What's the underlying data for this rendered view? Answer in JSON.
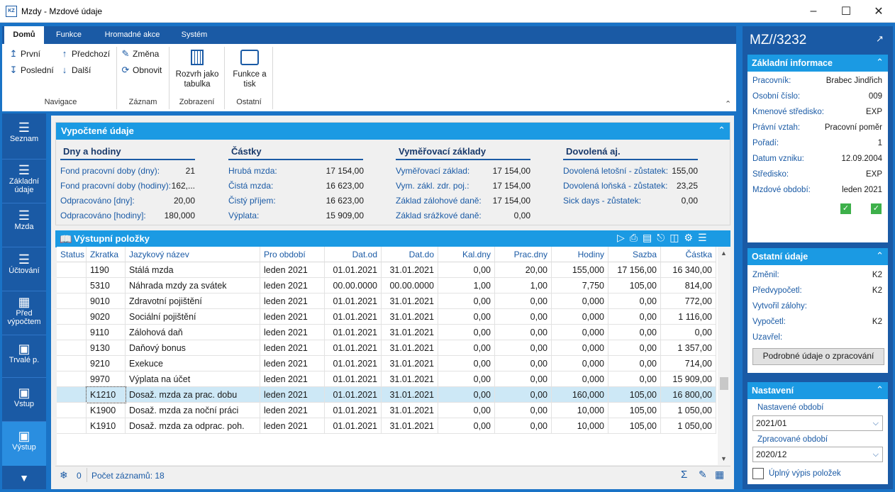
{
  "window": {
    "title": "Mzdy - Mzdové údaje",
    "icon_text": "KZ"
  },
  "ribbon": {
    "tabs": [
      "Domů",
      "Funkce",
      "Hromadné akce",
      "Systém"
    ],
    "nav": {
      "first": "První",
      "prev": "Předchozí",
      "last": "Poslední",
      "next": "Další",
      "group": "Navigace"
    },
    "record": {
      "change": "Změna",
      "refresh": "Obnovit",
      "group": "Záznam"
    },
    "view": {
      "layout": "Rozvrh jako tabulka",
      "group": "Zobrazení"
    },
    "other": {
      "print": "Funkce a tisk",
      "group": "Ostatní"
    }
  },
  "leftnav": [
    "Seznam",
    "Základní údaje",
    "Mzda",
    "Účtování",
    "Před výpočtem",
    "Trvalé p.",
    "Vstup",
    "Výstup"
  ],
  "computed": {
    "title": "Vypočtené údaje",
    "sections": [
      {
        "title": "Dny a hodiny",
        "rows": [
          [
            "Fond pracovní doby (dny):",
            "21"
          ],
          [
            "Fond pracovní doby (hodiny):",
            "162,..."
          ],
          [
            "Odpracováno [dny]:",
            "20,00"
          ],
          [
            "Odpracováno [hodiny]:",
            "180,000"
          ]
        ]
      },
      {
        "title": "Částky",
        "rows": [
          [
            "Hrubá mzda:",
            "17 154,00"
          ],
          [
            "Čistá mzda:",
            "16 623,00"
          ],
          [
            "Čistý příjem:",
            "16 623,00"
          ],
          [
            "Výplata:",
            "15 909,00"
          ]
        ]
      },
      {
        "title": "Vyměřovací základy",
        "rows": [
          [
            "Vyměřovací základ:",
            "17 154,00"
          ],
          [
            "Vym. zákl. zdr. poj.:",
            "17 154,00"
          ],
          [
            "Základ zálohové daně:",
            "17 154,00"
          ],
          [
            "Základ srážkové daně:",
            "0,00"
          ]
        ]
      },
      {
        "title": "Dovolená aj.",
        "rows": [
          [
            "Dovolená letošní - zůstatek:",
            "155,00"
          ],
          [
            "Dovolená loňská - zůstatek:",
            "23,25"
          ],
          [
            "Sick days - zůstatek:",
            "0,00"
          ]
        ]
      }
    ]
  },
  "output": {
    "title": "Výstupní položky",
    "columns": [
      "Status",
      "Zkratka",
      "Jazykový název",
      "Pro období",
      "Dat.od",
      "Dat.do",
      "Kal.dny",
      "Prac.dny",
      "Hodiny",
      "Sazba",
      "Částka"
    ],
    "rows": [
      [
        "",
        "1190",
        "Stálá mzda",
        "leden 2021",
        "01.01.2021",
        "31.01.2021",
        "0,00",
        "20,00",
        "155,000",
        "17 156,00",
        "16 340,00"
      ],
      [
        "",
        "5310",
        "Náhrada mzdy za svátek",
        "leden 2021",
        "00.00.0000",
        "00.00.0000",
        "1,00",
        "1,00",
        "7,750",
        "105,00",
        "814,00"
      ],
      [
        "",
        "9010",
        "Zdravotní pojištění",
        "leden 2021",
        "01.01.2021",
        "31.01.2021",
        "0,00",
        "0,00",
        "0,000",
        "0,00",
        "772,00"
      ],
      [
        "",
        "9020",
        "Sociální pojištění",
        "leden 2021",
        "01.01.2021",
        "31.01.2021",
        "0,00",
        "0,00",
        "0,000",
        "0,00",
        "1 116,00"
      ],
      [
        "",
        "9110",
        "Zálohová daň",
        "leden 2021",
        "01.01.2021",
        "31.01.2021",
        "0,00",
        "0,00",
        "0,000",
        "0,00",
        "0,00"
      ],
      [
        "",
        "9130",
        "Daňový bonus",
        "leden 2021",
        "01.01.2021",
        "31.01.2021",
        "0,00",
        "0,00",
        "0,000",
        "0,00",
        "1 357,00"
      ],
      [
        "",
        "9210",
        "Exekuce",
        "leden 2021",
        "01.01.2021",
        "31.01.2021",
        "0,00",
        "0,00",
        "0,000",
        "0,00",
        "714,00"
      ],
      [
        "",
        "9970",
        "Výplata na účet",
        "leden 2021",
        "01.01.2021",
        "31.01.2021",
        "0,00",
        "0,00",
        "0,000",
        "0,00",
        "15 909,00"
      ],
      [
        "",
        "K1210",
        "Dosaž. mzda za prac. dobu",
        "leden 2021",
        "01.01.2021",
        "31.01.2021",
        "0,00",
        "0,00",
        "160,000",
        "105,00",
        "16 800,00"
      ],
      [
        "",
        "K1900",
        "Dosaž. mzda za noční práci",
        "leden 2021",
        "01.01.2021",
        "31.01.2021",
        "0,00",
        "0,00",
        "10,000",
        "105,00",
        "1 050,00"
      ],
      [
        "",
        "K1910",
        "Dosaž. mzda za odprac. poh.",
        "leden 2021",
        "01.01.2021",
        "31.01.2021",
        "0,00",
        "0,00",
        "10,000",
        "105,00",
        "1 050,00"
      ]
    ],
    "selected_row": 8,
    "footer": {
      "filter_count": "0",
      "count": "Počet záznamů: 18"
    }
  },
  "right": {
    "record_id": "MZ//3232",
    "basic": {
      "title": "Základní informace",
      "rows": [
        [
          "Pracovník:",
          "Brabec Jindřich"
        ],
        [
          "Osobní číslo:",
          "009"
        ],
        [
          "Kmenové středisko:",
          "EXP"
        ],
        [
          "Právní vztah:",
          "Pracovní poměr"
        ],
        [
          "Pořadí:",
          "1"
        ],
        [
          "Datum vzniku:",
          "12.09.2004"
        ],
        [
          "Středisko:",
          "EXP"
        ],
        [
          "Mzdové období:",
          "leden 2021"
        ]
      ]
    },
    "other": {
      "title": "Ostatní údaje",
      "rows": [
        [
          "Změnil:",
          "K2"
        ],
        [
          "Předvypočetl:",
          "K2"
        ],
        [
          "Vytvořil zálohy:",
          ""
        ],
        [
          "Vypočetl:",
          "K2"
        ],
        [
          "Uzavřel:",
          ""
        ]
      ],
      "button": "Podrobné údaje o zpracování"
    },
    "settings": {
      "title": "Nastavení",
      "set_label": "Nastavené období",
      "set_value": "2021/01",
      "proc_label": "Zpracované období",
      "proc_value": "2020/12",
      "checkbox": "Úplný výpis položek"
    }
  }
}
